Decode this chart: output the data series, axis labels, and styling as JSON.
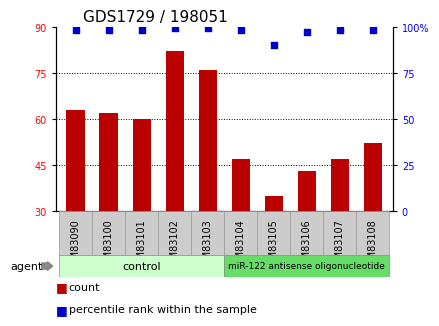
{
  "title": "GDS1729 / 198051",
  "categories": [
    "GSM83090",
    "GSM83100",
    "GSM83101",
    "GSM83102",
    "GSM83103",
    "GSM83104",
    "GSM83105",
    "GSM83106",
    "GSM83107",
    "GSM83108"
  ],
  "bar_values": [
    63,
    62,
    60,
    82,
    76,
    47,
    35,
    43,
    47,
    52
  ],
  "percentile_values": [
    98,
    98,
    98,
    99,
    99,
    98,
    90,
    97,
    98,
    98
  ],
  "bar_color": "#bb0000",
  "dot_color": "#0000cc",
  "ylim_left": [
    30,
    90
  ],
  "ylim_right": [
    0,
    100
  ],
  "yticks_left": [
    30,
    45,
    60,
    75,
    90
  ],
  "yticks_right": [
    0,
    25,
    50,
    75,
    100
  ],
  "ytick_labels_right": [
    "0",
    "25",
    "50",
    "75",
    "100%"
  ],
  "grid_values": [
    45,
    60,
    75
  ],
  "ctrl_color": "#ccffcc",
  "mir_color": "#66dd66",
  "tick_box_color": "#cccccc",
  "tick_box_edge": "#999999",
  "background_color": "#ffffff",
  "bar_width": 0.55,
  "title_fontsize": 11,
  "tick_fontsize": 7,
  "group_fontsize": 8,
  "legend_fontsize": 8
}
